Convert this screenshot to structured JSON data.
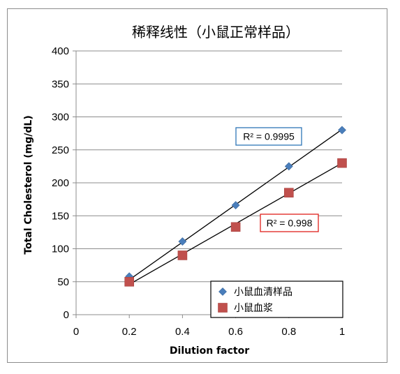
{
  "chart_data": {
    "type": "scatter",
    "title": "稀释线性（小鼠正常样品）",
    "xlabel": "Dilution factor",
    "ylabel": "Total Cholesterol (mg/dL)",
    "xlim": [
      0,
      1
    ],
    "ylim": [
      0,
      400
    ],
    "x_ticks": [
      0,
      0.2,
      0.4,
      0.6,
      0.8,
      1
    ],
    "x_tick_labels": [
      "0",
      "0.2",
      "0.4",
      "0.6",
      "0.8",
      "1"
    ],
    "y_ticks": [
      0,
      50,
      100,
      150,
      200,
      250,
      300,
      350,
      400
    ],
    "y_tick_labels": [
      "0",
      "50",
      "100",
      "150",
      "200",
      "250",
      "300",
      "350",
      "400"
    ],
    "grid": "horizontal",
    "legend_position": "bottom-right",
    "series": [
      {
        "name": "小鼠血清样品",
        "marker": "diamond",
        "color": "#4a7ebb",
        "x": [
          0.2,
          0.4,
          0.6,
          0.8,
          1.0
        ],
        "y": [
          58,
          111,
          166,
          225,
          280
        ],
        "trendline": {
          "x": [
            0.2,
            1.0
          ],
          "y": [
            53,
            281
          ]
        },
        "r_squared_label": "R² = 0.9995",
        "r_squared_box_color": "#2e75b6"
      },
      {
        "name": "小鼠血浆",
        "marker": "square",
        "color": "#c0504d",
        "x": [
          0.2,
          0.4,
          0.6,
          0.8,
          1.0
        ],
        "y": [
          50,
          90,
          133,
          185,
          230
        ],
        "trendline": {
          "x": [
            0.2,
            1.0
          ],
          "y": [
            46,
            230
          ]
        },
        "r_squared_label": "R² = 0.998",
        "r_squared_box_color": "#e0201b"
      }
    ]
  }
}
